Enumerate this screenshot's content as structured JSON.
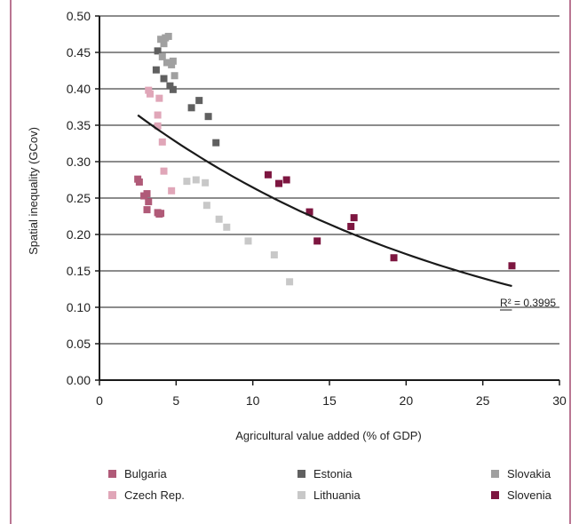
{
  "chart_data": {
    "type": "scatter",
    "title": "",
    "xlabel": "Agricultural value added (% of GDP)",
    "ylabel": "Spatial inequality (GCov)",
    "xlim": [
      0,
      30
    ],
    "ylim": [
      0,
      0.5
    ],
    "x_ticks": [
      "0",
      "5",
      "10",
      "15",
      "20",
      "25",
      "30"
    ],
    "y_ticks": [
      "0.00",
      "0.05",
      "0.10",
      "0.15",
      "0.20",
      "0.25",
      "0.30",
      "0.35",
      "0.40",
      "0.45",
      "0.50"
    ],
    "grid": "horizontal",
    "legend_placement": "bottom",
    "series": [
      {
        "name": "Bulgaria",
        "color": "#b05a78",
        "points": [
          [
            2.5,
            0.276
          ],
          [
            2.6,
            0.272
          ],
          [
            2.9,
            0.253
          ],
          [
            3.1,
            0.256
          ],
          [
            3.2,
            0.245
          ],
          [
            3.1,
            0.234
          ],
          [
            3.8,
            0.23
          ],
          [
            3.9,
            0.228
          ],
          [
            4.0,
            0.229
          ]
        ]
      },
      {
        "name": "Czech Rep.",
        "color": "#e0a6b8",
        "points": [
          [
            3.2,
            0.398
          ],
          [
            3.3,
            0.393
          ],
          [
            3.9,
            0.387
          ],
          [
            3.8,
            0.364
          ],
          [
            3.8,
            0.349
          ],
          [
            4.1,
            0.327
          ],
          [
            4.2,
            0.287
          ],
          [
            4.7,
            0.26
          ]
        ]
      },
      {
        "name": "Estonia",
        "color": "#606060",
        "points": [
          [
            3.7,
            0.426
          ],
          [
            3.8,
            0.452
          ],
          [
            4.2,
            0.414
          ],
          [
            4.6,
            0.404
          ],
          [
            4.8,
            0.399
          ],
          [
            6.0,
            0.374
          ],
          [
            6.5,
            0.384
          ],
          [
            7.1,
            0.362
          ],
          [
            7.6,
            0.326
          ]
        ]
      },
      {
        "name": "Lithuania",
        "color": "#c8c8c8",
        "points": [
          [
            5.7,
            0.273
          ],
          [
            6.3,
            0.275
          ],
          [
            6.9,
            0.271
          ],
          [
            7.0,
            0.24
          ],
          [
            7.8,
            0.221
          ],
          [
            8.3,
            0.21
          ],
          [
            9.7,
            0.191
          ],
          [
            11.4,
            0.172
          ],
          [
            12.4,
            0.135
          ]
        ]
      },
      {
        "name": "Slovakia",
        "color": "#a0a0a0",
        "points": [
          [
            4.0,
            0.468
          ],
          [
            4.3,
            0.47
          ],
          [
            4.5,
            0.472
          ],
          [
            4.1,
            0.444
          ],
          [
            4.2,
            0.462
          ],
          [
            4.4,
            0.436
          ],
          [
            4.7,
            0.433
          ],
          [
            4.8,
            0.438
          ],
          [
            4.9,
            0.418
          ]
        ]
      },
      {
        "name": "Slovenia",
        "color": "#7d1640",
        "points": [
          [
            11.0,
            0.282
          ],
          [
            11.7,
            0.27
          ],
          [
            12.2,
            0.275
          ],
          [
            13.7,
            0.231
          ],
          [
            14.2,
            0.191
          ],
          [
            16.4,
            0.211
          ],
          [
            16.6,
            0.223
          ],
          [
            19.2,
            0.168
          ],
          [
            26.9,
            0.157
          ]
        ]
      }
    ],
    "trendline": {
      "type": "exponential",
      "label": "R² = 0.3995",
      "x_range": [
        2.5,
        26.9
      ],
      "coefficients": {
        "a": 0.4045,
        "b": -0.04245
      }
    }
  },
  "legend": {
    "rows": [
      [
        "Bulgaria",
        "Estonia",
        "Slovakia"
      ],
      [
        "Czech Rep.",
        "Lithuania",
        "Slovenia"
      ]
    ]
  },
  "frame_color": "#8b1a4a"
}
